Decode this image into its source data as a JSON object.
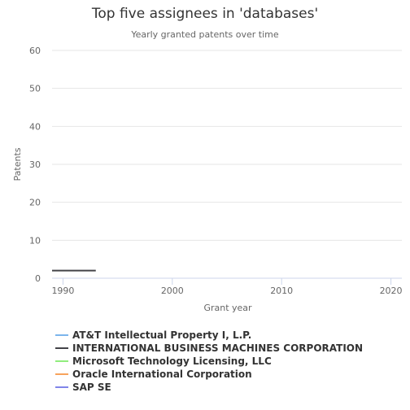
{
  "chart_data": {
    "type": "line",
    "title": "Top five assignees in 'databases'",
    "subtitle": "Yearly granted patents over time",
    "xlabel": "Grant year",
    "ylabel": "Patents",
    "xlim": [
      1989,
      2021
    ],
    "ylim": [
      0,
      60
    ],
    "xticks": [
      "1990",
      "2000",
      "2010",
      "2020"
    ],
    "yticks": [
      "0",
      "10",
      "20",
      "30",
      "40",
      "50",
      "60"
    ],
    "grid": "horizontal",
    "legend_position": "bottom",
    "series": [
      {
        "name": "AT&T Intellectual Property I, L.P.",
        "color": "#7cb5ec",
        "x": [],
        "y": []
      },
      {
        "name": "INTERNATIONAL BUSINESS MACHINES CORPORATION",
        "color": "#434348",
        "x": [
          1989,
          1993
        ],
        "y": [
          2,
          2
        ]
      },
      {
        "name": "Microsoft Technology Licensing, LLC",
        "color": "#90ed7d",
        "x": [],
        "y": []
      },
      {
        "name": "Oracle International Corporation",
        "color": "#f7a35c",
        "x": [],
        "y": []
      },
      {
        "name": "SAP SE",
        "color": "#8085e9",
        "x": [],
        "y": []
      }
    ]
  }
}
